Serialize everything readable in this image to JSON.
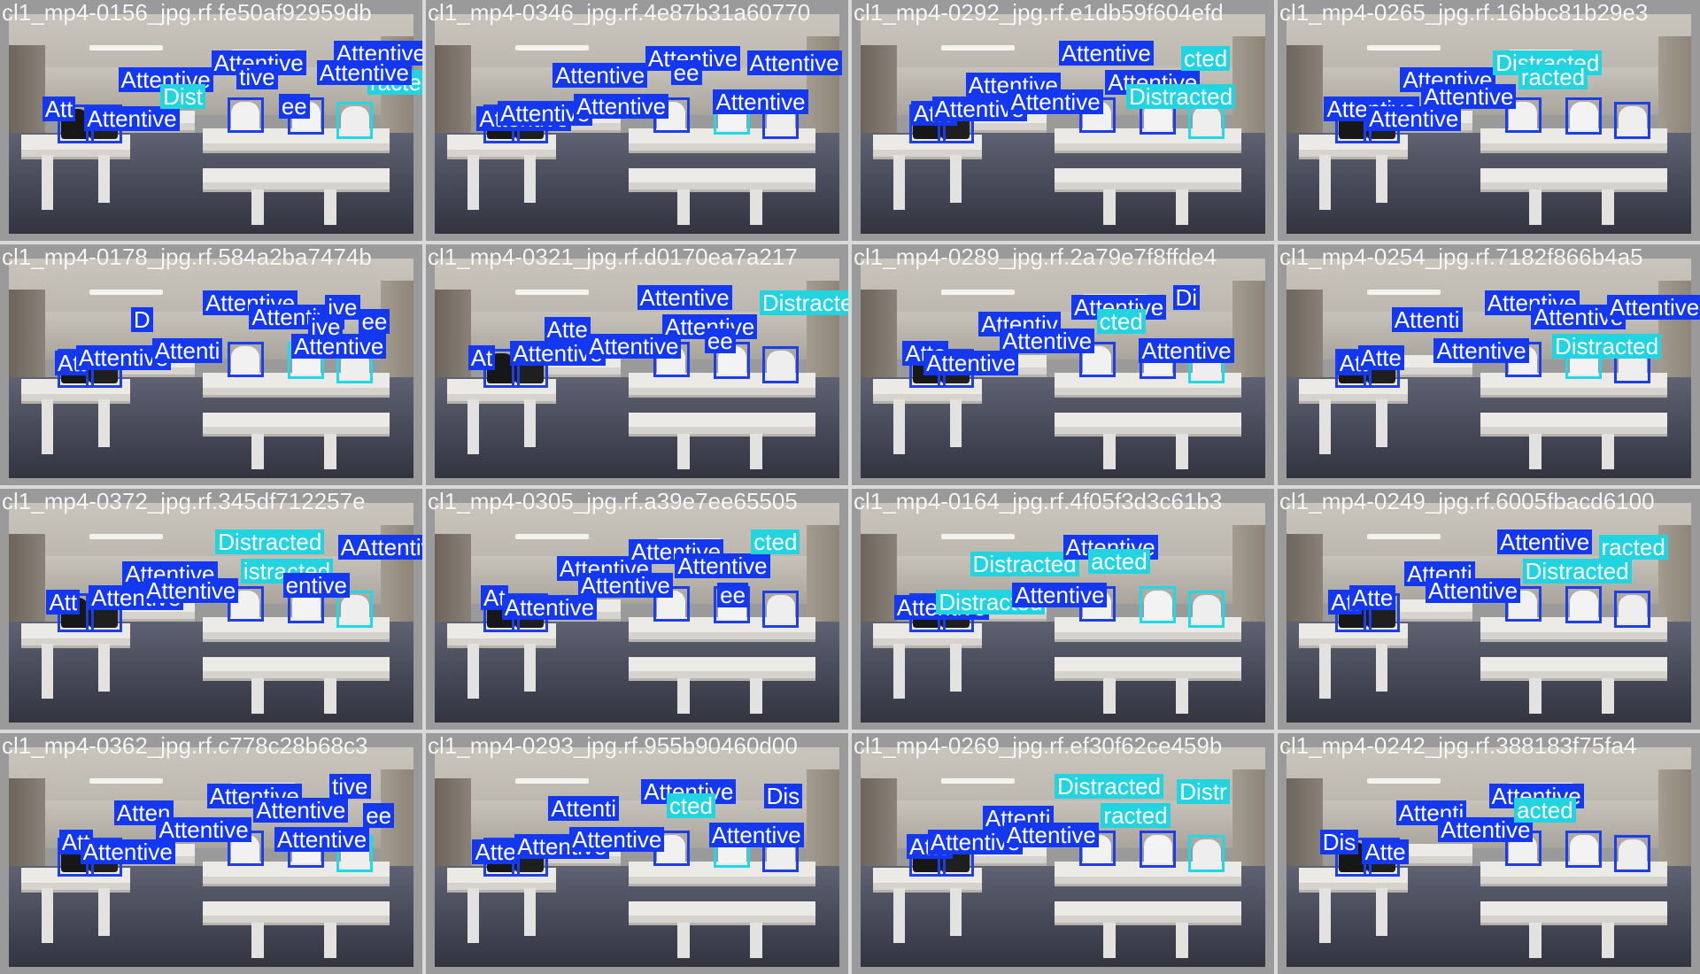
{
  "grid": {
    "tiles": [
      {
        "title": "cl1_mp4-0156_jpg.rf.fe50af92959db",
        "tags": [
          "Att",
          "Attentive",
          "Attentive",
          "Dist",
          "Attentive",
          "tive",
          "Attentive",
          "ee",
          "racted",
          "Attentive"
        ]
      },
      {
        "title": "cl1_mp4-0346_jpg.rf.4e87b31a60770",
        "tags": [
          "Attentive",
          "Attentive",
          "Attentive",
          "Attentive",
          "Attentive",
          "ee",
          "Attentive",
          "Attentive"
        ]
      },
      {
        "title": "cl1_mp4-0292_jpg.rf.e1db59f604efd",
        "tags": [
          "Atte",
          "Attentive",
          "Attentive",
          "Attentive",
          "Attentive",
          "Attentive",
          "cted",
          "Distracted"
        ]
      },
      {
        "title": "cl1_mp4-0265_jpg.rf.16bbc81b29e3",
        "tags": [
          "Attentive",
          "Attentive",
          "Attentive",
          "Attentive",
          "Distracted",
          "racted"
        ]
      },
      {
        "title": "cl1_mp4-0178_jpg.rf.584a2ba7474b",
        "tags": [
          "Att",
          "Attentive",
          "D",
          "Attenti",
          "Attentive",
          "Attentive",
          "ive",
          "Attentive",
          "ee",
          "ive"
        ]
      },
      {
        "title": "cl1_mp4-0321_jpg.rf.d0170ea7a217",
        "tags": [
          "At",
          "Attentive",
          "Atte",
          "Attentive",
          "Attentive",
          "Attentive",
          "Distracted",
          "ee"
        ]
      },
      {
        "title": "cl1_mp4-0289_jpg.rf.2a79e7f8ffde4",
        "tags": [
          "Atte",
          "Attentive",
          "Attentiv",
          "Attentive",
          "Attentive",
          "cted",
          "Di",
          "Attentive"
        ]
      },
      {
        "title": "cl1_mp4-0254_jpg.rf.7182f866b4a5",
        "tags": [
          "Att",
          "Atte",
          "Attenti",
          "Attentive",
          "Attentive",
          "Attentive",
          "Attentive",
          "Distracted"
        ]
      },
      {
        "title": "cl1_mp4-0372_jpg.rf.345df712257e",
        "tags": [
          "Att",
          "Attentive",
          "Attentive",
          "Attentive",
          "Distracted",
          "istracted",
          "AAttentive",
          "entive"
        ]
      },
      {
        "title": "cl1_mp4-0305_jpg.rf.a39e7ee65505",
        "tags": [
          "At",
          "Attentive",
          "Attentive",
          "Attentive",
          "Attentive",
          "Attentive",
          "cted",
          "ee"
        ]
      },
      {
        "title": "cl1_mp4-0164_jpg.rf.4f05f3d3c61b3",
        "tags": [
          "Attentive",
          "Distracted",
          "Distracted",
          "Attentive",
          "Attentive",
          "acted"
        ]
      },
      {
        "title": "cl1_mp4-0249_jpg.rf.6005fbacd6100",
        "tags": [
          "Att",
          "Atte",
          "Attenti",
          "Attentive",
          "Attentive",
          "Distracted",
          "racted"
        ]
      },
      {
        "title": "cl1_mp4-0362_jpg.rf.c778c28b68c3",
        "tags": [
          "Att",
          "Attentive",
          "Atten",
          "Attentive",
          "Attentive",
          "Attentive",
          "tive",
          "Attentive",
          "ee"
        ]
      },
      {
        "title": "cl1_mp4-0293_jpg.rf.955b90460d00",
        "tags": [
          "Atte",
          "Attentive",
          "Attenti",
          "Attentive",
          "Attentive",
          "cted",
          "Dis",
          "Attentive"
        ]
      },
      {
        "title": "cl1_mp4-0269_jpg.rf.ef30f62ce459b",
        "tags": [
          "Atte",
          "Attentive",
          "Attenti",
          "Attentive",
          "Distracted",
          "racted",
          "Distr"
        ]
      },
      {
        "title": "cl1_mp4-0242_jpg.rf.388183f75fa4",
        "tags": [
          "Dis",
          "Atte",
          "Attenti",
          "Attentive",
          "Attentive",
          "acted"
        ]
      }
    ]
  },
  "colors": {
    "attentive": "#1437f0",
    "distracted": "#22d3e0",
    "title": "#ffffff",
    "border": "#d9d9d9"
  }
}
